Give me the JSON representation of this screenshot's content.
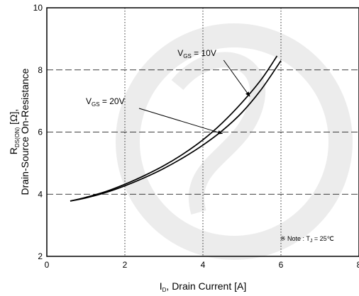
{
  "chart_data": {
    "type": "line",
    "title": "",
    "xlabel": {
      "main": "I",
      "sub": "D",
      "rest": ", Drain Current [A]"
    },
    "ylabel": {
      "line1": {
        "main": "R",
        "sub": "DS(ON)",
        "rest": " [Ω],",
        "unit_sub": ""
      },
      "line2": "Drain-Source On-Resistance"
    },
    "xlim": [
      0,
      8
    ],
    "ylim": [
      2,
      10
    ],
    "xticks": [
      0,
      2,
      4,
      6,
      8
    ],
    "yticks": [
      2,
      4,
      6,
      8,
      10
    ],
    "grid": true,
    "series": [
      {
        "name": "VGS = 10V",
        "x": [
          0.6,
          1.0,
          1.5,
          2.0,
          2.5,
          3.0,
          3.5,
          4.0,
          4.5,
          5.0,
          5.5,
          5.9
        ],
        "y": [
          3.78,
          3.9,
          4.08,
          4.32,
          4.6,
          4.92,
          5.3,
          5.75,
          6.3,
          6.95,
          7.7,
          8.45
        ]
      },
      {
        "name": "VGS = 20V",
        "x": [
          0.6,
          1.0,
          1.5,
          2.0,
          2.5,
          3.0,
          3.5,
          4.0,
          4.5,
          5.0,
          5.5,
          6.0
        ],
        "y": [
          3.78,
          3.88,
          4.05,
          4.27,
          4.53,
          4.83,
          5.18,
          5.58,
          6.05,
          6.63,
          7.38,
          8.3
        ]
      }
    ],
    "annotations": [
      {
        "main": "V",
        "sub": "GS",
        "rest": " = 10V",
        "text_at": [
          3.35,
          8.45
        ],
        "arrow_to": [
          5.2,
          7.15
        ]
      },
      {
        "main": "V",
        "sub": "GS",
        "rest": " = 20V",
        "text_at": [
          1.0,
          6.9
        ],
        "arrow_to": [
          4.5,
          5.95
        ]
      }
    ],
    "note": {
      "prefix": "※ Note : T",
      "sub": "J",
      "rest": " = 25℃"
    }
  }
}
